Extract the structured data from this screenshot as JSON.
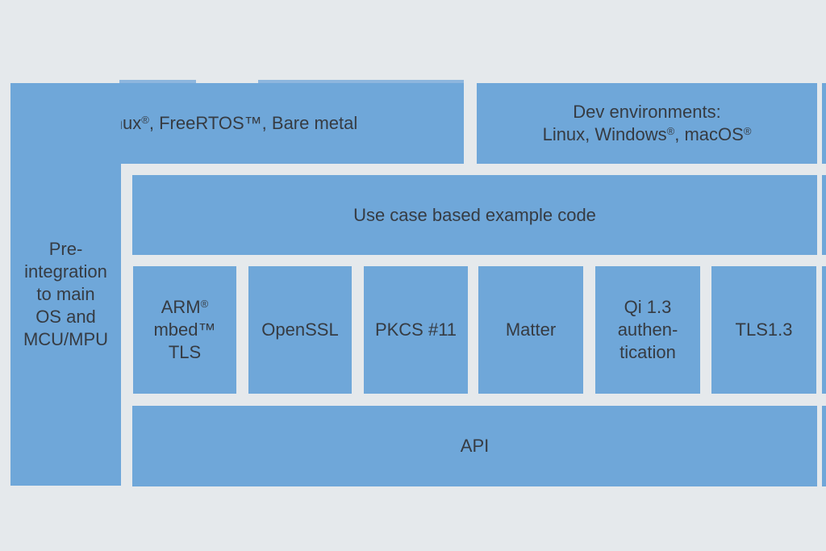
{
  "diagram": {
    "colors": {
      "background": "#e5e9ec",
      "box": "#6fa7d9",
      "text": "#363b42",
      "remnant": "#8db6de"
    },
    "left_column": {
      "label": "Pre-\nintegration\nto main\nOS and\nMCU/MPU"
    },
    "top_row": {
      "os_box": {
        "label": "Linux®, FreeRTOS™, Bare metal"
      },
      "dev_box": {
        "label": "Dev environments:\nLinux, Windows®, macOS®"
      }
    },
    "example_code_box": {
      "label": "Use case based example code"
    },
    "middleware_boxes": [
      {
        "label": "ARM®\nmbed™\nTLS"
      },
      {
        "label": "OpenSSL"
      },
      {
        "label": "PKCS #11"
      },
      {
        "label": "Matter"
      },
      {
        "label": "Qi 1.3\nauthen-\ntication"
      },
      {
        "label": "TLS1.3"
      }
    ],
    "api_box": {
      "label": "API"
    }
  }
}
